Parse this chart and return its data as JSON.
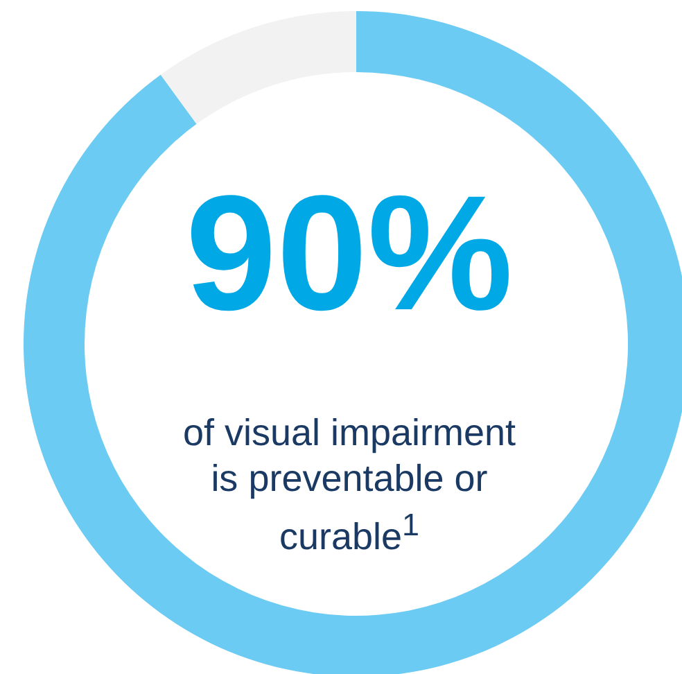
{
  "chart_data": {
    "type": "donut",
    "categories": [
      null,
      null
    ],
    "values": [
      90,
      10
    ],
    "colors": [
      "#6ccbf2",
      "#f2f2f2"
    ],
    "annotations": [
      "90%",
      "of visual impairment is preventable or curable$^{1}$"
    ]
  }
}
